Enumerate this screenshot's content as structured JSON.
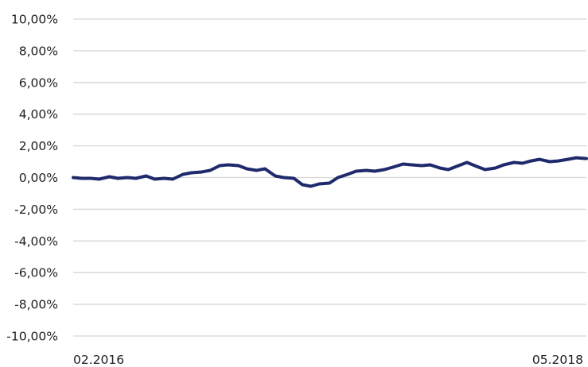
{
  "chart_data": {
    "type": "line",
    "title": "",
    "xlabel": "",
    "ylabel": "",
    "ylim": [
      -10,
      10
    ],
    "y_ticks": [
      10,
      8,
      6,
      4,
      2,
      0,
      -2,
      -4,
      -6,
      -8,
      -10
    ],
    "y_tick_labels": [
      "10,00%",
      "8,00%",
      "6,00%",
      "4,00%",
      "2,00%",
      "0,00%",
      "-2,00%",
      "-4,00%",
      "-6,00%",
      "-8,00%",
      "-10,00%"
    ],
    "x_tick_labels": [
      "02.2016",
      "05.2018"
    ],
    "x_range": [
      "02.2016",
      "06.2018"
    ],
    "grid": "horizontal",
    "legend": "none",
    "colors": {
      "line": "#1e2a6b",
      "grid": "#d6d6d6"
    },
    "series": [
      {
        "x": [
          "2016-02-01",
          "2016-02-15",
          "2016-03-01",
          "2016-03-15",
          "2016-04-01",
          "2016-04-15",
          "2016-05-01",
          "2016-05-15",
          "2016-06-01",
          "2016-06-15",
          "2016-07-01",
          "2016-07-15",
          "2016-08-01",
          "2016-08-15",
          "2016-09-01",
          "2016-09-15",
          "2016-10-01",
          "2016-10-15",
          "2016-11-01",
          "2016-11-15",
          "2016-12-01",
          "2016-12-15",
          "2017-01-01",
          "2017-01-15",
          "2017-02-01",
          "2017-02-15",
          "2017-03-01",
          "2017-03-15",
          "2017-04-01",
          "2017-04-15",
          "2017-05-01",
          "2017-05-15",
          "2017-06-01",
          "2017-06-15",
          "2017-07-01",
          "2017-07-15",
          "2017-08-01",
          "2017-08-15",
          "2017-09-01",
          "2017-09-15",
          "2017-10-01",
          "2017-10-15",
          "2017-11-01",
          "2017-11-15",
          "2017-12-01",
          "2017-12-15",
          "2018-01-01",
          "2018-01-15",
          "2018-02-01",
          "2018-02-15",
          "2018-03-01",
          "2018-03-15",
          "2018-04-01",
          "2018-04-15",
          "2018-05-01",
          "2018-05-15",
          "2018-06-01"
        ],
        "values": [
          0.0,
          -0.05,
          -0.05,
          -0.1,
          0.05,
          -0.05,
          0.0,
          -0.05,
          0.1,
          -0.1,
          -0.05,
          -0.1,
          0.2,
          0.3,
          0.35,
          0.45,
          0.75,
          0.8,
          0.75,
          0.55,
          0.45,
          0.55,
          0.1,
          0.0,
          -0.05,
          -0.45,
          -0.55,
          -0.4,
          -0.35,
          0.0,
          0.2,
          0.4,
          0.45,
          0.4,
          0.5,
          0.65,
          0.85,
          0.8,
          0.75,
          0.8,
          0.6,
          0.5,
          0.75,
          0.95,
          0.7,
          0.5,
          0.6,
          0.8,
          0.95,
          0.9,
          1.05,
          1.15,
          1.0,
          1.05,
          1.15,
          1.25,
          1.2
        ]
      }
    ]
  }
}
